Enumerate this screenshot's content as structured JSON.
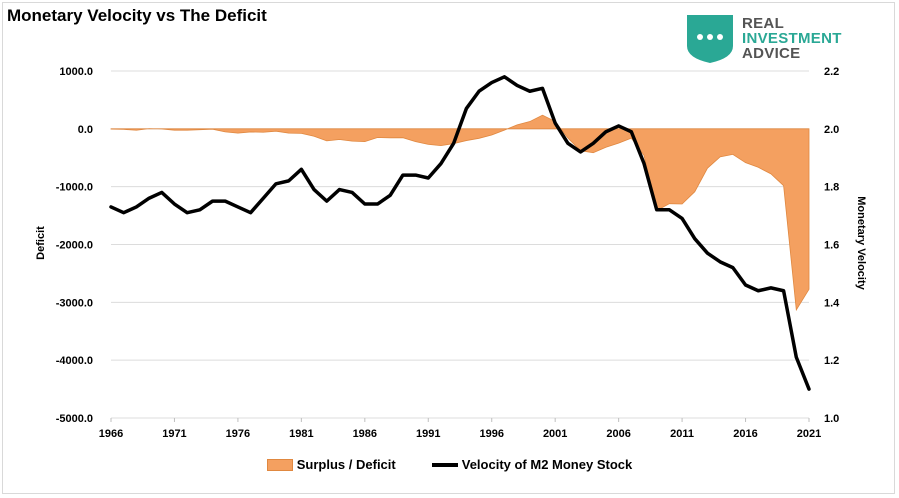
{
  "title": "Monetary Velocity vs The Deficit",
  "logo": {
    "line1": "REAL",
    "line2": "INVESTMENT",
    "line3": "ADVICE",
    "icon": "chat-bubble-shield-icon",
    "colors": {
      "primary": "#2aa895",
      "text": "#545454"
    }
  },
  "chart_data": {
    "type": "area+line",
    "title": "Monetary Velocity vs The Deficit",
    "x_ticks": [
      "1966",
      "1971",
      "1976",
      "1981",
      "1986",
      "1991",
      "1996",
      "2001",
      "2006",
      "2011",
      "2016",
      "2021"
    ],
    "xlim": [
      1966,
      2021
    ],
    "left_axis": {
      "label": "Deficit",
      "ylim": [
        -5000,
        1000
      ],
      "ticks": [
        "1000.0",
        "0.0",
        "-1000.0",
        "-2000.0",
        "-3000.0",
        "-4000.0",
        "-5000.0"
      ],
      "tick_values": [
        1000,
        0,
        -1000,
        -2000,
        -3000,
        -4000,
        -5000
      ]
    },
    "right_axis": {
      "label": "Monetary Velocity",
      "ylim": [
        1.0,
        2.2
      ],
      "ticks": [
        "2.2",
        "2.0",
        "1.8",
        "1.6",
        "1.4",
        "1.2",
        "1.0"
      ],
      "tick_values": [
        2.2,
        2.0,
        1.8,
        1.6,
        1.4,
        1.2,
        1.0
      ]
    },
    "grid": true,
    "legend_position": "bottom",
    "series": [
      {
        "name": "Surplus / Deficit",
        "axis": "left",
        "kind": "area",
        "color": "#f4a060",
        "x": [
          1966,
          1967,
          1968,
          1969,
          1970,
          1971,
          1972,
          1973,
          1974,
          1975,
          1976,
          1977,
          1978,
          1979,
          1980,
          1981,
          1982,
          1983,
          1984,
          1985,
          1986,
          1987,
          1988,
          1989,
          1990,
          1991,
          1992,
          1993,
          1994,
          1995,
          1996,
          1997,
          1998,
          1999,
          2000,
          2001,
          2002,
          2003,
          2004,
          2005,
          2006,
          2007,
          2008,
          2009,
          2010,
          2011,
          2012,
          2013,
          2014,
          2015,
          2016,
          2017,
          2018,
          2019,
          2020,
          2021
        ],
        "values": [
          -4,
          -9,
          -25,
          3,
          -3,
          -23,
          -23,
          -15,
          -6,
          -53,
          -74,
          -54,
          -59,
          -41,
          -74,
          -79,
          -128,
          -208,
          -185,
          -212,
          -221,
          -150,
          -155,
          -153,
          -221,
          -269,
          -290,
          -255,
          -203,
          -164,
          -107,
          -22,
          69,
          126,
          236,
          128,
          -158,
          -378,
          -413,
          -318,
          -248,
          -161,
          -459,
          -1413,
          -1294,
          -1300,
          -1087,
          -680,
          -485,
          -442,
          -585,
          -665,
          -779,
          -984,
          -3132,
          -2775
        ]
      },
      {
        "name": "Velocity of M2 Money Stock",
        "axis": "right",
        "kind": "line",
        "color": "#000000",
        "x": [
          1966,
          1967,
          1968,
          1969,
          1970,
          1971,
          1972,
          1973,
          1974,
          1975,
          1976,
          1977,
          1978,
          1979,
          1980,
          1981,
          1982,
          1983,
          1984,
          1985,
          1986,
          1987,
          1988,
          1989,
          1990,
          1991,
          1992,
          1993,
          1994,
          1995,
          1996,
          1997,
          1998,
          1999,
          2000,
          2001,
          2002,
          2003,
          2004,
          2005,
          2006,
          2007,
          2008,
          2009,
          2010,
          2011,
          2012,
          2013,
          2014,
          2015,
          2016,
          2017,
          2018,
          2019,
          2020,
          2021
        ],
        "values": [
          1.73,
          1.71,
          1.73,
          1.76,
          1.78,
          1.74,
          1.71,
          1.72,
          1.75,
          1.75,
          1.73,
          1.71,
          1.76,
          1.81,
          1.82,
          1.86,
          1.79,
          1.75,
          1.79,
          1.78,
          1.74,
          1.74,
          1.77,
          1.84,
          1.84,
          1.83,
          1.88,
          1.95,
          2.07,
          2.13,
          2.16,
          2.18,
          2.15,
          2.13,
          2.14,
          2.02,
          1.95,
          1.92,
          1.95,
          1.99,
          2.01,
          1.99,
          1.88,
          1.72,
          1.72,
          1.69,
          1.62,
          1.57,
          1.54,
          1.52,
          1.46,
          1.44,
          1.45,
          1.44,
          1.21,
          1.1
        ]
      }
    ]
  },
  "legend": {
    "area_label": "Surplus / Deficit",
    "line_label": "Velocity of M2 Money Stock"
  }
}
